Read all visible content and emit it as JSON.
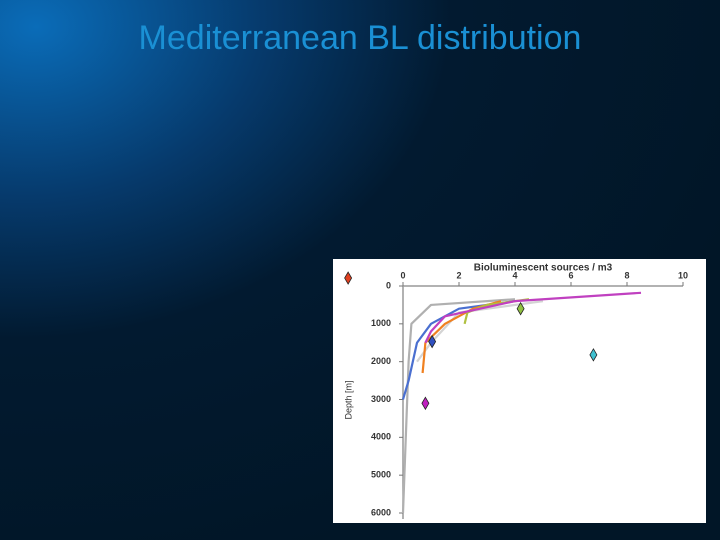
{
  "slide_title": "Mediterranean BL distribution",
  "chart_data": {
    "type": "line",
    "title": "Bioluminescent sources / m3",
    "y_label": "Depth [m]",
    "xlim": [
      0,
      10
    ],
    "xticks": [
      0,
      2,
      4,
      6,
      8,
      10
    ],
    "ylim": [
      0,
      6000
    ],
    "yticks": [
      0,
      1000,
      2000,
      3000,
      4000,
      5000,
      6000
    ],
    "y_inverted": true,
    "series": [
      {
        "color": "#b0b0b0",
        "x": [
          4,
          1,
          0.3,
          0.2,
          0.1,
          0
        ],
        "values": [
          350,
          500,
          1000,
          2000,
          4000,
          6000
        ]
      },
      {
        "color": "#d4d4d4",
        "x": [
          5,
          2,
          1,
          0.5
        ],
        "values": [
          400,
          700,
          1500,
          2000
        ]
      },
      {
        "color": "#4a6fd0",
        "x": [
          4,
          2,
          1,
          0.5,
          0.2,
          0
        ],
        "values": [
          400,
          600,
          1000,
          1500,
          2500,
          3000
        ]
      },
      {
        "color": "#f08020",
        "x": [
          3.5,
          2.5,
          1.5,
          0.8,
          0.7
        ],
        "values": [
          400,
          600,
          1000,
          1500,
          2300
        ]
      },
      {
        "color": "#b0c040",
        "x": [
          4.5,
          3,
          2.3,
          2.2
        ],
        "values": [
          350,
          500,
          700,
          1000
        ]
      },
      {
        "color": "#c040c0",
        "x": [
          8.5,
          4,
          1.5,
          1,
          0.8
        ],
        "values": [
          180,
          400,
          800,
          1200,
          1500
        ]
      }
    ],
    "points": [
      {
        "color": "#e04020",
        "x": -1.96,
        "y": -210
      },
      {
        "color": "#90c040",
        "x": 4.2,
        "y": 600
      },
      {
        "color": "#3050c0",
        "x": 1.04,
        "y": 1470
      },
      {
        "color": "#40c0d0",
        "x": 6.8,
        "y": 1820
      },
      {
        "color": "#c020c0",
        "x": 0.8,
        "y": 3100
      }
    ]
  }
}
